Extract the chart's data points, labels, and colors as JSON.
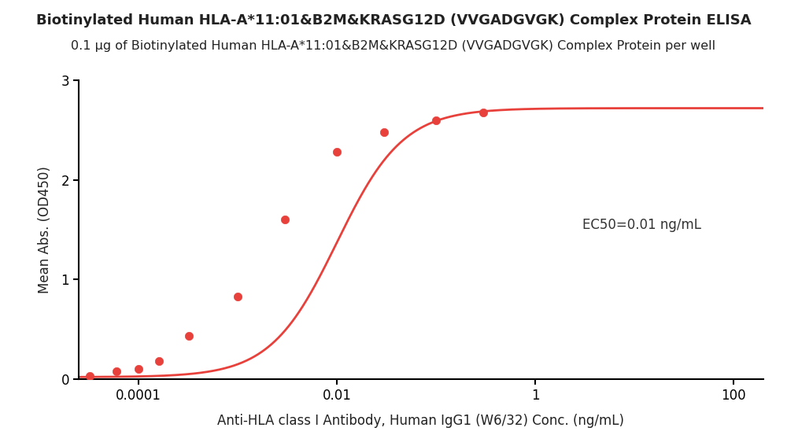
{
  "title": "Biotinylated Human HLA-A*11:01&B2M&KRASG12D (VVGADGVGK) Complex Protein ELISA",
  "subtitle": "0.1 μg of Biotinylated Human HLA-A*11:01&B2M&KRASG12D (VVGADGVGK) Complex Protein per well",
  "xlabel": "Anti-HLA class I Antibody, Human IgG1 (W6/32) Conc. (ng/mL)",
  "ylabel": "Mean Abs. (OD450)",
  "ec50_label": "EC50=0.01 ng/mL",
  "ec50_x_data": 3.0,
  "ec50_y_data": 1.55,
  "data_x": [
    3.2e-05,
    6e-05,
    0.0001,
    0.00016,
    0.00032,
    0.001,
    0.003,
    0.01,
    0.03,
    0.1,
    0.3
  ],
  "data_y": [
    0.03,
    0.08,
    0.1,
    0.18,
    0.43,
    0.83,
    1.6,
    2.28,
    2.48,
    2.6,
    2.68
  ],
  "curve_color": "#E8413C",
  "dot_color": "#E8413C",
  "ylim": [
    0,
    3.0
  ],
  "xlim_left": 2.5e-05,
  "xlim_right": 200,
  "yticks": [
    0,
    1,
    2,
    3
  ],
  "xtick_vals": [
    0.0001,
    0.01,
    1,
    100
  ],
  "xtick_labels": [
    "0.0001",
    "0.01",
    "1",
    "100"
  ],
  "title_fontsize": 13,
  "subtitle_fontsize": 11.5,
  "label_fontsize": 12,
  "ec50_fontsize": 12,
  "tick_fontsize": 12,
  "line_width": 2.0,
  "dot_size": 55,
  "background_color": "#ffffff"
}
